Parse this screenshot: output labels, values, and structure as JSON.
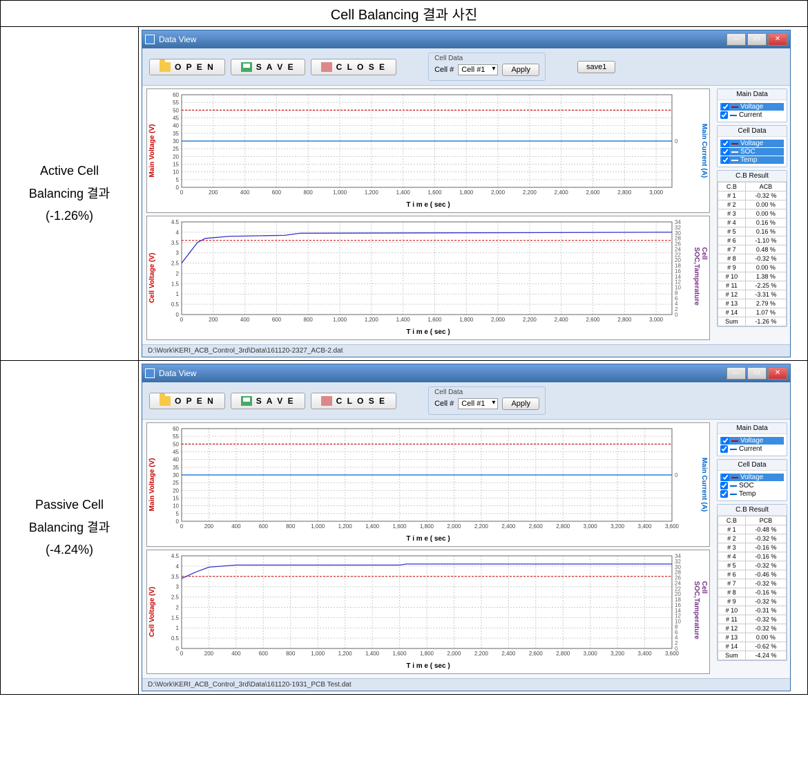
{
  "table_header": "Cell Balancing 결과 사진",
  "rows": [
    {
      "label_lines": [
        "Active Cell",
        "Balancing 결과",
        "(-1.26%)"
      ],
      "window": {
        "title": "Data View",
        "toolbar": {
          "open": "O P E N",
          "save": "S A V E",
          "close": "C L O S E",
          "cell_data_label": "Cell Data",
          "cell_num_label": "Cell #",
          "cell_select": "Cell #1",
          "apply": "Apply",
          "save1": "save1",
          "show_save1": true
        },
        "chart1": {
          "ylabel_left": "Main Voltage (V)",
          "ylabel_left_color": "#c00",
          "ylabel_right": "Main Current (A)",
          "ylabel_right_color": "#06c",
          "xlabel": "T i m e ( sec )",
          "xlim": [
            0,
            3100
          ],
          "xtick_step": 200,
          "ylim": [
            0,
            60
          ],
          "ytick_step": 5,
          "right_tick": "0",
          "series": [
            {
              "color": "#c00",
              "y": 50,
              "dash": true
            },
            {
              "color": "#06c",
              "y": 30,
              "dash": false
            }
          ]
        },
        "chart2": {
          "ylabel_left": "Cell Voltage (V)",
          "ylabel_left_color": "#c00",
          "ylabel_right": "Cell SOC,Tamperature",
          "ylabel_right_color": "#738",
          "xlabel": "T i m e ( sec )",
          "xlim": [
            0,
            3100
          ],
          "xtick_step": 200,
          "ylim": [
            0,
            4.5
          ],
          "ytick_step": 0.5,
          "ylim_right": [
            0,
            34
          ],
          "ytick_step_right": 2,
          "ref_line": {
            "y": 3.6,
            "color": "#c00"
          },
          "curve": {
            "color": "#33c",
            "points": [
              [
                0,
                2.5
              ],
              [
                50,
                3.0
              ],
              [
                100,
                3.5
              ],
              [
                150,
                3.7
              ],
              [
                300,
                3.8
              ],
              [
                650,
                3.85
              ],
              [
                700,
                3.9
              ],
              [
                750,
                3.95
              ],
              [
                3100,
                4.0
              ]
            ]
          }
        },
        "sidebar": {
          "main_data": {
            "title": "Main Data",
            "items": [
              {
                "label": "Voltage",
                "color": "#c00",
                "sel": true
              },
              {
                "label": "Current",
                "color": "#06c",
                "sel": false
              }
            ]
          },
          "cell_data": {
            "title": "Cell Data",
            "items": [
              {
                "label": "Voltage",
                "color": "#c00",
                "sel": true
              },
              {
                "label": "SOC",
                "color": "#fff",
                "sel": true
              },
              {
                "label": "Temp",
                "color": "#fff",
                "sel": true
              }
            ]
          },
          "cb_result": {
            "title": "C.B Result",
            "header": [
              "C.B",
              "ACB"
            ],
            "rows": [
              [
                "# 1",
                "-0.32 %"
              ],
              [
                "# 2",
                "0.00 %"
              ],
              [
                "# 3",
                "0.00 %"
              ],
              [
                "# 4",
                "0.16 %"
              ],
              [
                "# 5",
                "0.16 %"
              ],
              [
                "# 6",
                "-1.10 %"
              ],
              [
                "# 7",
                "0.48 %"
              ],
              [
                "# 8",
                "-0.32 %"
              ],
              [
                "# 9",
                "0.00 %"
              ],
              [
                "# 10",
                "1.38 %"
              ],
              [
                "# 11",
                "-2.25 %"
              ],
              [
                "# 12",
                "-3.31 %"
              ],
              [
                "# 13",
                "2.79 %"
              ],
              [
                "# 14",
                "1.07 %"
              ],
              [
                "Sum",
                "-1.26 %"
              ]
            ]
          }
        },
        "statusbar": "D:\\Work\\KERI_ACB_Control_3rd\\Data\\161120-2327_ACB-2.dat"
      }
    },
    {
      "label_lines": [
        "Passive Cell",
        "Balancing 결과",
        "(-4.24%)"
      ],
      "window": {
        "title": "Data View",
        "toolbar": {
          "open": "O P E N",
          "save": "S A V E",
          "close": "C L O S E",
          "cell_data_label": "Cell Data",
          "cell_num_label": "Cell #",
          "cell_select": "Cell #1",
          "apply": "Apply",
          "show_save1": false
        },
        "chart1": {
          "ylabel_left": "Main Voltage (V)",
          "ylabel_left_color": "#c00",
          "ylabel_right": "Main Current (A)",
          "ylabel_right_color": "#06c",
          "xlabel": "T i m e ( sec )",
          "xlim": [
            0,
            3600
          ],
          "xtick_step": 200,
          "ylim": [
            0,
            60
          ],
          "ytick_step": 5,
          "right_tick": "0",
          "series": [
            {
              "color": "#c00",
              "y": 50,
              "dash": true
            },
            {
              "color": "#06c",
              "y": 30,
              "dash": false
            }
          ]
        },
        "chart2": {
          "ylabel_left": "Cell Voltage (V)",
          "ylabel_left_color": "#c00",
          "ylabel_right": "Cell SOC,Tamperature",
          "ylabel_right_color": "#738",
          "xlabel": "T i m e ( sec )",
          "xlim": [
            0,
            3600
          ],
          "xtick_step": 200,
          "ylim": [
            0,
            4.5
          ],
          "ytick_step": 0.5,
          "ylim_right": [
            0,
            34
          ],
          "ytick_step_right": 2,
          "ref_line": {
            "y": 3.5,
            "color": "#c00"
          },
          "curve": {
            "color": "#33c",
            "points": [
              [
                0,
                3.4
              ],
              [
                100,
                3.7
              ],
              [
                200,
                3.95
              ],
              [
                300,
                4.0
              ],
              [
                400,
                4.05
              ],
              [
                1600,
                4.05
              ],
              [
                1650,
                4.1
              ],
              [
                3600,
                4.1
              ]
            ]
          }
        },
        "sidebar": {
          "main_data": {
            "title": "Main Data",
            "items": [
              {
                "label": "Voltage",
                "color": "#c00",
                "sel": true
              },
              {
                "label": "Current",
                "color": "#06c",
                "sel": false
              }
            ]
          },
          "cell_data": {
            "title": "Cell Data",
            "items": [
              {
                "label": "Voltage",
                "color": "#c00",
                "sel": true
              },
              {
                "label": "SOC",
                "color": "#06c",
                "sel": false
              },
              {
                "label": "Temp",
                "color": "#06c",
                "sel": false
              }
            ]
          },
          "cb_result": {
            "title": "C.B Result",
            "header": [
              "C.B",
              "PCB"
            ],
            "rows": [
              [
                "# 1",
                "-0.48 %"
              ],
              [
                "# 2",
                "-0.32 %"
              ],
              [
                "# 3",
                "-0.16 %"
              ],
              [
                "# 4",
                "-0.16 %"
              ],
              [
                "# 5",
                "-0.32 %"
              ],
              [
                "# 6",
                "-0.46 %"
              ],
              [
                "# 7",
                "-0.32 %"
              ],
              [
                "# 8",
                "-0.16 %"
              ],
              [
                "# 9",
                "-0.32 %"
              ],
              [
                "# 10",
                "-0.31 %"
              ],
              [
                "# 11",
                "-0.32 %"
              ],
              [
                "# 12",
                "-0.32 %"
              ],
              [
                "# 13",
                "0.00 %"
              ],
              [
                "# 14",
                "-0.62 %"
              ],
              [
                "Sum",
                "-4.24 %"
              ]
            ]
          }
        },
        "statusbar": "D:\\Work\\KERI_ACB_Control_3rd\\Data\\161120-1931_PCB Test.dat"
      }
    }
  ]
}
